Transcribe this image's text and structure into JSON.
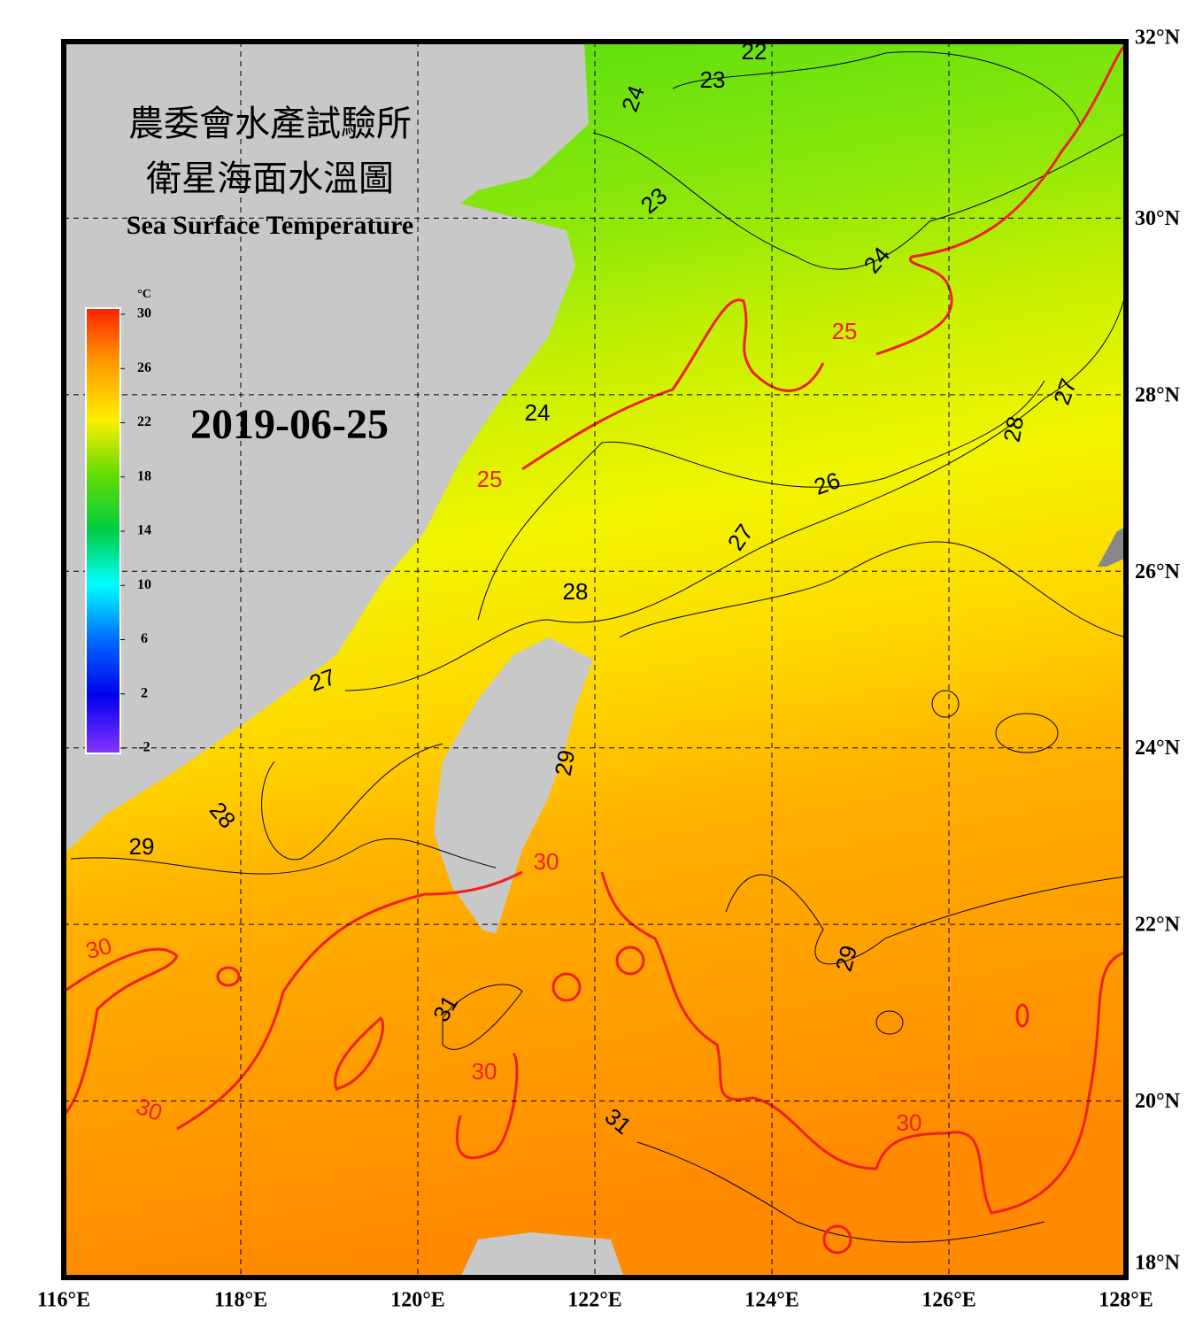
{
  "header": {
    "title_zh_1": "農委會水產試驗所",
    "title_zh_2": "衛星海面水溫圖",
    "title_en": "Sea Surface Temperature"
  },
  "date": "2019-06-25",
  "colorbar": {
    "unit": "°C",
    "ticks": [
      30,
      26,
      22,
      18,
      14,
      10,
      6,
      2,
      -2
    ]
  },
  "map": {
    "lon_ticks": [
      {
        "value": 116,
        "label": "116°E"
      },
      {
        "value": 118,
        "label": "118°E"
      },
      {
        "value": 120,
        "label": "120°E"
      },
      {
        "value": 122,
        "label": "122°E"
      },
      {
        "value": 124,
        "label": "124°E"
      },
      {
        "value": 126,
        "label": "126°E"
      },
      {
        "value": 128,
        "label": "128°E"
      }
    ],
    "lat_ticks": [
      {
        "value": 32,
        "label": "32°N"
      },
      {
        "value": 30,
        "label": "30°N"
      },
      {
        "value": 28,
        "label": "28°N"
      },
      {
        "value": 26,
        "label": "26°N"
      },
      {
        "value": 24,
        "label": "24°N"
      },
      {
        "value": 22,
        "label": "22°N"
      },
      {
        "value": 20,
        "label": "20°N"
      },
      {
        "value": 18,
        "label": "18°N"
      }
    ]
  },
  "contour_labels": [
    22,
    23,
    24,
    23,
    24,
    25,
    24,
    25,
    26,
    27,
    28,
    27,
    28,
    27,
    29,
    28,
    29,
    30,
    30,
    29,
    31,
    30,
    30,
    31,
    30
  ]
}
